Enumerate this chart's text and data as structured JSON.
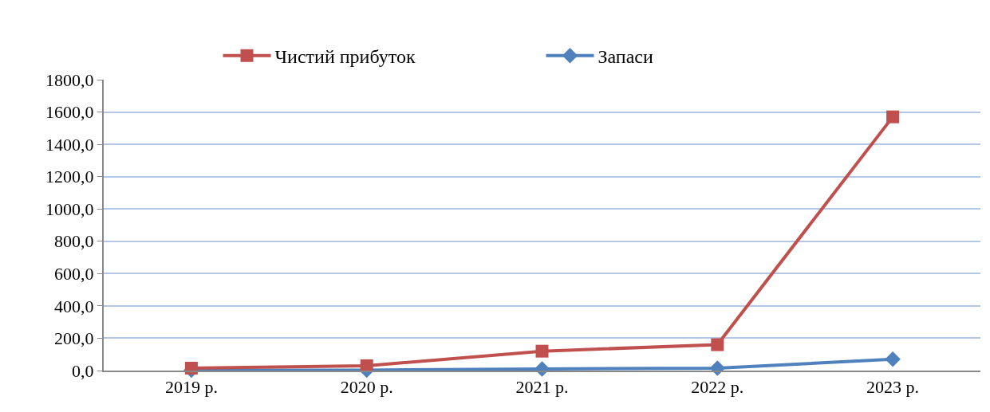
{
  "chart_data": {
    "type": "line",
    "categories": [
      "2019 р.",
      "2020 р.",
      "2021 р.",
      "2022 р.",
      "2023 р."
    ],
    "series": [
      {
        "name": "Чистий прибуток",
        "color": "#c0504d",
        "marker": "square",
        "values": [
          15,
          30,
          120,
          160,
          1570
        ]
      },
      {
        "name": "Запаси",
        "color": "#4f81bd",
        "marker": "diamond",
        "values": [
          2,
          3,
          10,
          15,
          70
        ]
      }
    ],
    "ylim": [
      0,
      1800
    ],
    "yticks": [
      {
        "value": 0,
        "label": "0,0"
      },
      {
        "value": 200,
        "label": "200,0"
      },
      {
        "value": 400,
        "label": "400,0"
      },
      {
        "value": 600,
        "label": "600,0"
      },
      {
        "value": 800,
        "label": "800,0"
      },
      {
        "value": 1000,
        "label": "1000,0"
      },
      {
        "value": 1200,
        "label": "1200,0"
      },
      {
        "value": 1400,
        "label": "1400,0"
      },
      {
        "value": 1600,
        "label": "1600,0"
      },
      {
        "value": 1800,
        "label": "1800,0"
      }
    ],
    "grid": "y",
    "legend": "top"
  }
}
